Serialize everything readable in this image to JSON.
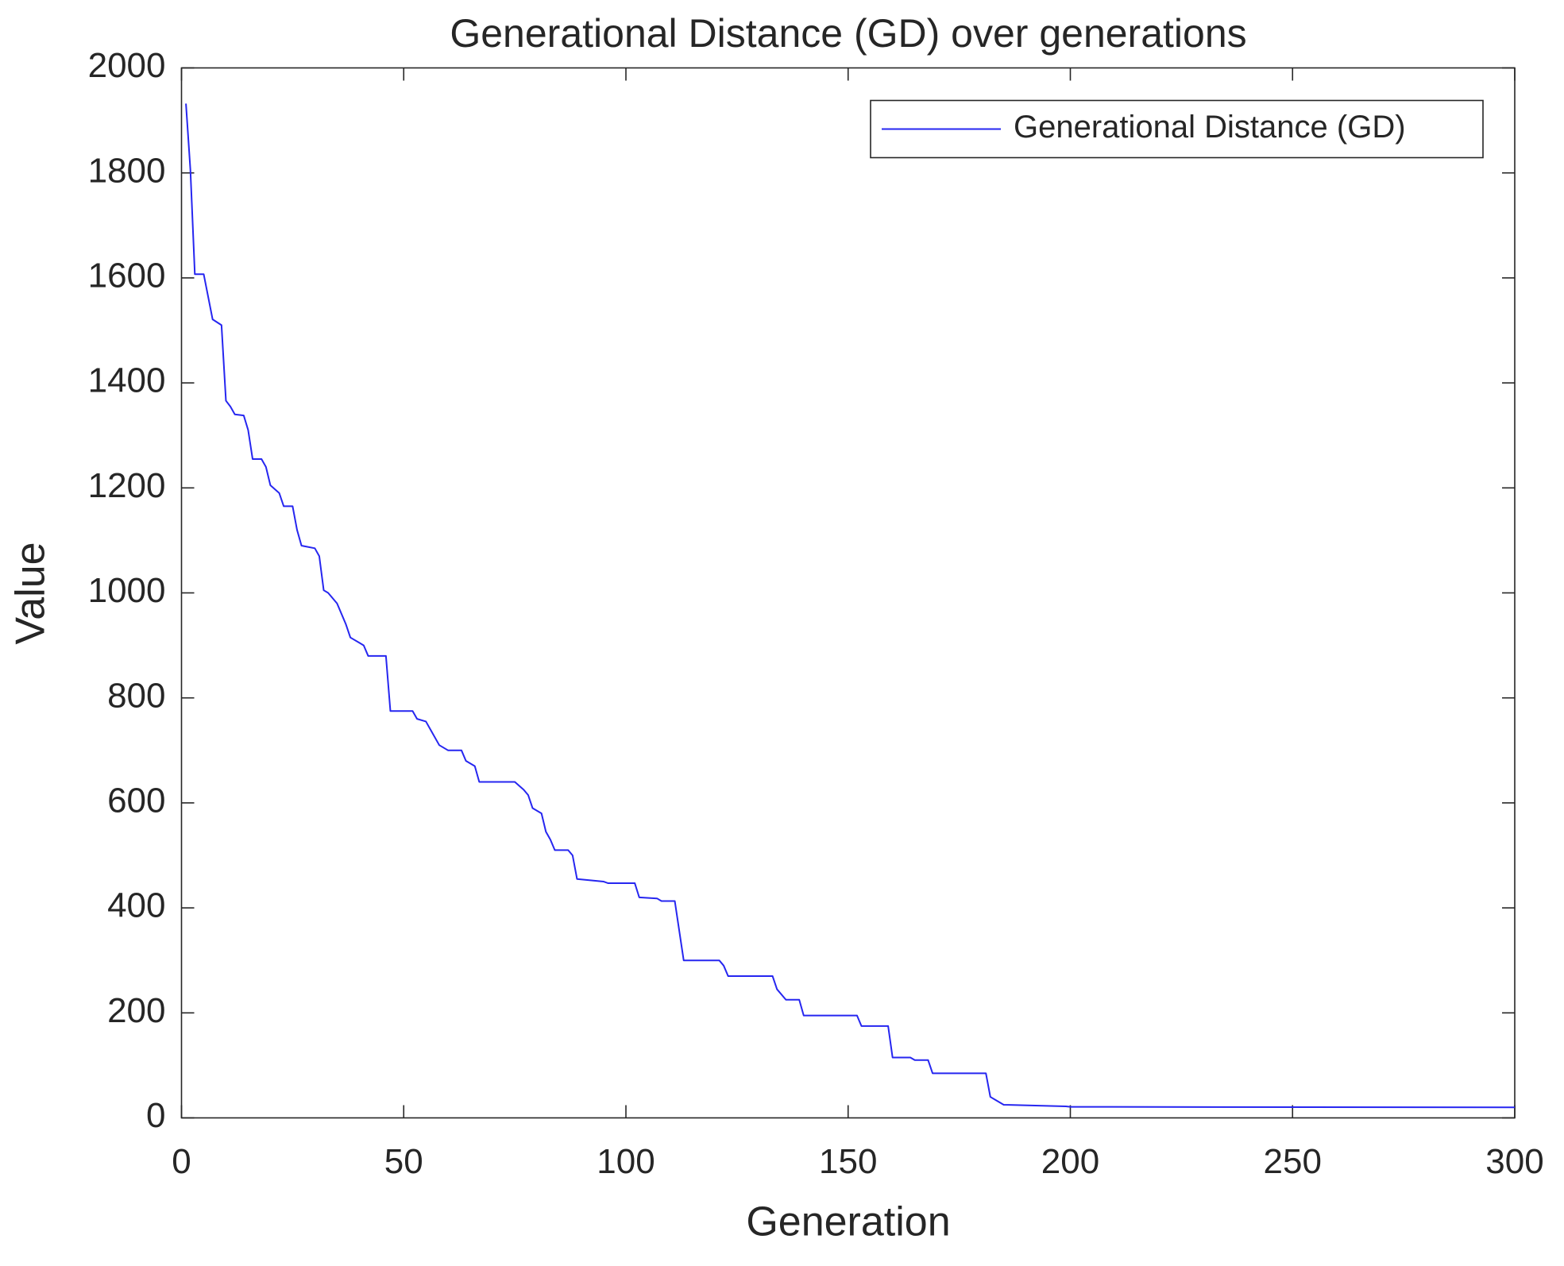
{
  "chart_data": {
    "type": "line",
    "title": "Generational Distance (GD) over generations",
    "xlabel": "Generation",
    "ylabel": "Value",
    "x": [
      1,
      2,
      3,
      5,
      7,
      9,
      10,
      11,
      12,
      14,
      15,
      16,
      18,
      19,
      20,
      22,
      23,
      25,
      26,
      27,
      30,
      31,
      32,
      33,
      35,
      37,
      38,
      40,
      41,
      42,
      46,
      47,
      52,
      53,
      55,
      56,
      58,
      60,
      63,
      64,
      66,
      67,
      75,
      77,
      78,
      79,
      81,
      82,
      83,
      84,
      87,
      88,
      89,
      95,
      96,
      102,
      103,
      107,
      108,
      111,
      113,
      121,
      122,
      123,
      133,
      134,
      136,
      139,
      140,
      152,
      153,
      159,
      160,
      164,
      165,
      168,
      169,
      181,
      182,
      183,
      185,
      199,
      200,
      300
    ],
    "series": [
      {
        "name": "Generational Distance (GD)",
        "color": "#2626f0",
        "values": [
          1932,
          1806,
          1607,
          1607,
          1521,
          1510,
          1366,
          1355,
          1340,
          1338,
          1310,
          1255,
          1255,
          1240,
          1205,
          1190,
          1165,
          1165,
          1120,
          1090,
          1085,
          1070,
          1005,
          1000,
          980,
          940,
          915,
          905,
          900,
          880,
          880,
          775,
          775,
          760,
          755,
          740,
          710,
          700,
          700,
          680,
          670,
          640,
          640,
          625,
          615,
          590,
          580,
          545,
          530,
          510,
          510,
          500,
          455,
          450,
          447,
          447,
          420,
          418,
          413,
          413,
          300,
          300,
          290,
          270,
          270,
          245,
          225,
          225,
          195,
          195,
          175,
          175,
          115,
          115,
          110,
          110,
          85,
          85,
          40,
          35,
          25,
          22,
          21,
          20
        ]
      }
    ],
    "xlim": [
      0,
      300
    ],
    "xticks": [
      0,
      50,
      100,
      150,
      200,
      250,
      300
    ],
    "ylim": [
      0,
      2000
    ],
    "yticks": [
      0,
      200,
      400,
      600,
      800,
      1000,
      1200,
      1400,
      1600,
      1800,
      2000
    ],
    "legend": "northeast"
  }
}
